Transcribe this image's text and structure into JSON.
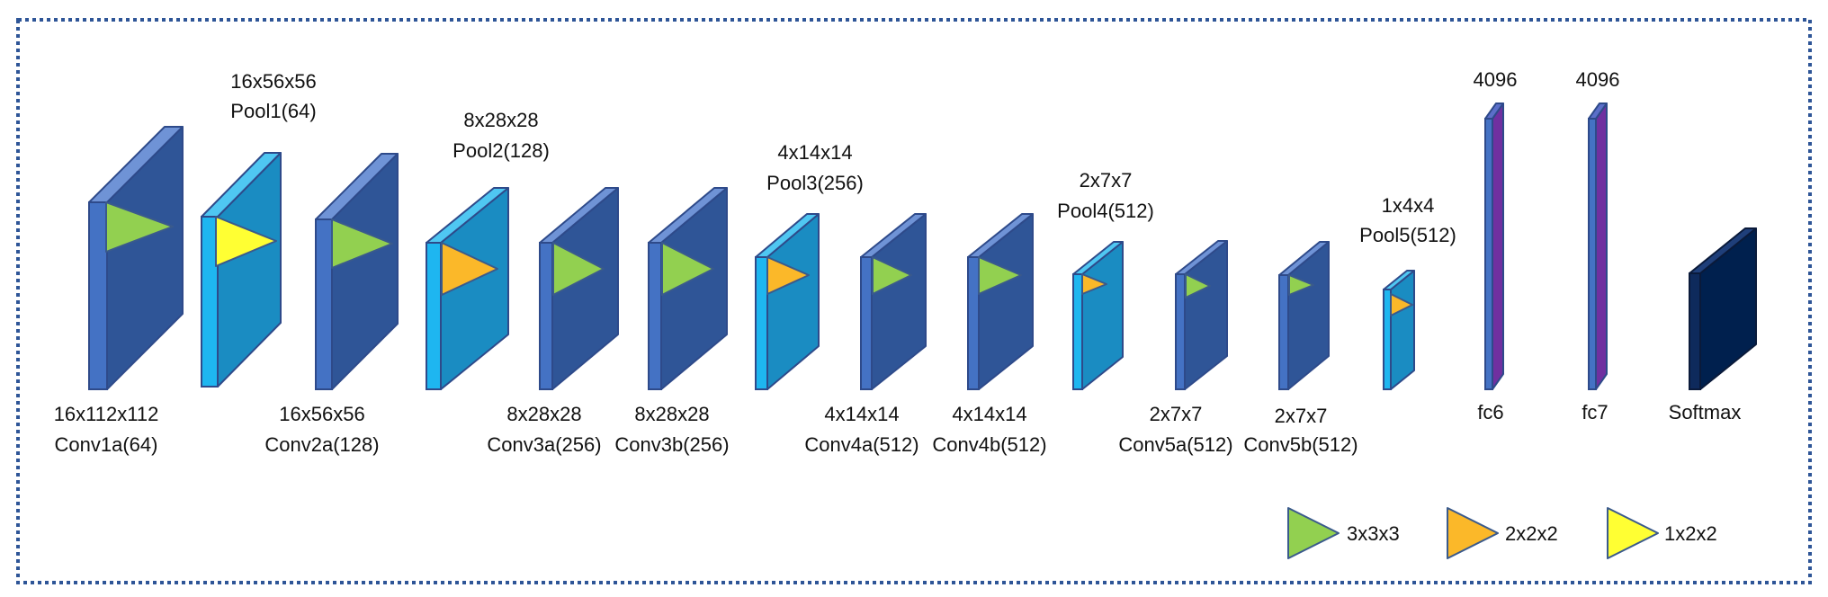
{
  "colors": {
    "conv_front": "#4472C4",
    "conv_face": "#2F5597",
    "conv_top": "#6F93D6",
    "pool_front": "#1EB6F0",
    "pool_face": "#1A8CC2",
    "pool_top": "#4FC7F2",
    "fc_front": "#4472C4",
    "fc_face": "#7030A0",
    "fc_top": "#5B6FC9",
    "softmax_front": "#0E2A5C",
    "softmax_face": "#00204E",
    "softmax_top": "#1F3F7A",
    "kernel_3x3x3": "#92D050",
    "kernel_2x2x2": "#FBB829",
    "kernel_1x2x2": "#FFFF33",
    "border": "#2E5597"
  },
  "layers": [
    {
      "name": "Conv1a(64)",
      "dims": "16x112x112",
      "type": "conv",
      "kernel": "3x3x3"
    },
    {
      "name": "Pool1(64)",
      "dims": "16x56x56",
      "type": "pool",
      "kernel": "1x2x2"
    },
    {
      "name": "Conv2a(128)",
      "dims": "16x56x56",
      "type": "conv",
      "kernel": "3x3x3"
    },
    {
      "name": "Pool2(128)",
      "dims": "8x28x28",
      "type": "pool",
      "kernel": "2x2x2"
    },
    {
      "name": "Conv3a(256)",
      "dims": "8x28x28",
      "type": "conv",
      "kernel": "3x3x3"
    },
    {
      "name": "Conv3b(256)",
      "dims": "8x28x28",
      "type": "conv",
      "kernel": "3x3x3"
    },
    {
      "name": "Pool3(256)",
      "dims": "4x14x14",
      "type": "pool",
      "kernel": "2x2x2"
    },
    {
      "name": "Conv4a(512)",
      "dims": "4x14x14",
      "type": "conv",
      "kernel": "3x3x3"
    },
    {
      "name": "Conv4b(512)",
      "dims": "4x14x14",
      "type": "conv",
      "kernel": "3x3x3"
    },
    {
      "name": "Pool4(512)",
      "dims": "2x7x7",
      "type": "pool",
      "kernel": "2x2x2"
    },
    {
      "name": "Conv5a(512)",
      "dims": "2x7x7",
      "type": "conv",
      "kernel": "3x3x3"
    },
    {
      "name": "Conv5b(512)",
      "dims": "2x7x7",
      "type": "conv",
      "kernel": "3x3x3"
    },
    {
      "name": "Pool5(512)",
      "dims": "1x4x4",
      "type": "pool",
      "kernel": "2x2x2"
    },
    {
      "name": "fc6",
      "dims": "4096",
      "type": "fc"
    },
    {
      "name": "fc7",
      "dims": "4096",
      "type": "fc"
    },
    {
      "name": "Softmax",
      "dims": "",
      "type": "softmax"
    }
  ],
  "legend": [
    {
      "label": "3x3x3",
      "kernel": "3x3x3"
    },
    {
      "label": "2x2x2",
      "kernel": "2x2x2"
    },
    {
      "label": "1x2x2",
      "kernel": "1x2x2"
    }
  ]
}
